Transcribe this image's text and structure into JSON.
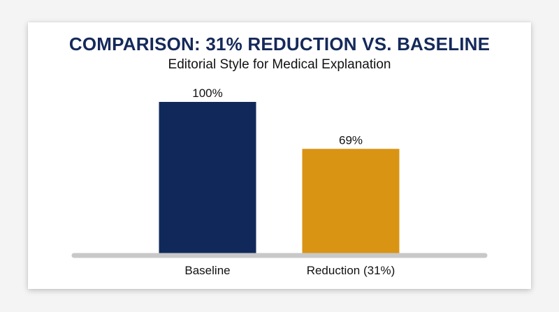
{
  "chart_data": {
    "type": "bar",
    "title": "COMPARISON: 31% REDUCTION VS. BASELINE",
    "subtitle": "Editorial Style for Medical Explanation",
    "xlabel": "",
    "ylabel": "",
    "categories": [
      "Baseline",
      "Reduction (31%)"
    ],
    "values": [
      100,
      69
    ],
    "value_labels": [
      "100%",
      "69%"
    ],
    "ylim": [
      0,
      100
    ],
    "grid": false,
    "legend": "none",
    "colors": {
      "bars": [
        "#11295a",
        "#d99414"
      ],
      "title": "#15295a",
      "axis": "#c8c8c8"
    }
  }
}
